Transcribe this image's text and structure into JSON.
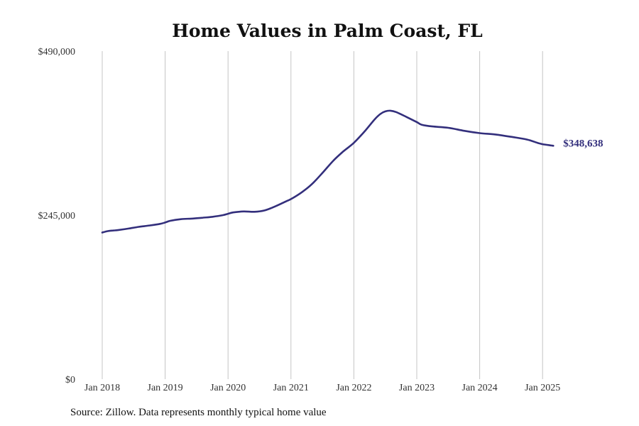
{
  "chart_data": {
    "type": "line",
    "title": "Home Values in Palm Coast, FL",
    "xlabel": "",
    "ylabel": "",
    "ylim": [
      0,
      490000
    ],
    "y_ticks": [
      0,
      245000,
      490000
    ],
    "y_tick_labels": [
      "$0",
      "$245,000",
      "$490,000"
    ],
    "x_ticks": [
      2018,
      2019,
      2020,
      2021,
      2022,
      2023,
      2024,
      2025
    ],
    "x_tick_labels": [
      "Jan 2018",
      "Jan 2019",
      "Jan 2020",
      "Jan 2021",
      "Jan 2022",
      "Jan 2023",
      "Jan 2024",
      "Jan 2025"
    ],
    "xlim": [
      2017.7,
      2026.2
    ],
    "grid": "vertical",
    "series": [
      {
        "name": "Typical home value",
        "color": "#332f7c",
        "end_label": "$348,638",
        "x": [
          2018.0,
          2018.08,
          2018.17,
          2018.25,
          2018.42,
          2018.58,
          2018.75,
          2018.92,
          2019.0,
          2019.08,
          2019.25,
          2019.42,
          2019.58,
          2019.75,
          2019.92,
          2020.0,
          2020.08,
          2020.25,
          2020.42,
          2020.58,
          2020.75,
          2020.92,
          2021.0,
          2021.17,
          2021.33,
          2021.5,
          2021.67,
          2021.83,
          2022.0,
          2022.17,
          2022.33,
          2022.42,
          2022.5,
          2022.58,
          2022.67,
          2022.83,
          2023.0,
          2023.08,
          2023.25,
          2023.5,
          2023.75,
          2024.0,
          2024.25,
          2024.5,
          2024.75,
          2024.92,
          2025.0,
          2025.17
        ],
        "values": [
          219000,
          221000,
          222000,
          222600,
          225000,
          227500,
          229500,
          232000,
          234000,
          236500,
          239000,
          239800,
          241000,
          242500,
          245000,
          247000,
          249000,
          250500,
          250000,
          252000,
          258000,
          265500,
          269000,
          279000,
          291000,
          308000,
          326000,
          340000,
          353000,
          370000,
          388000,
          396000,
          400000,
          401000,
          399000,
          392000,
          384000,
          380000,
          377500,
          375500,
          371000,
          367500,
          365500,
          362000,
          358000,
          353000,
          351000,
          348638
        ]
      }
    ]
  },
  "source": "Source: Zillow. Data represents monthly typical home value"
}
